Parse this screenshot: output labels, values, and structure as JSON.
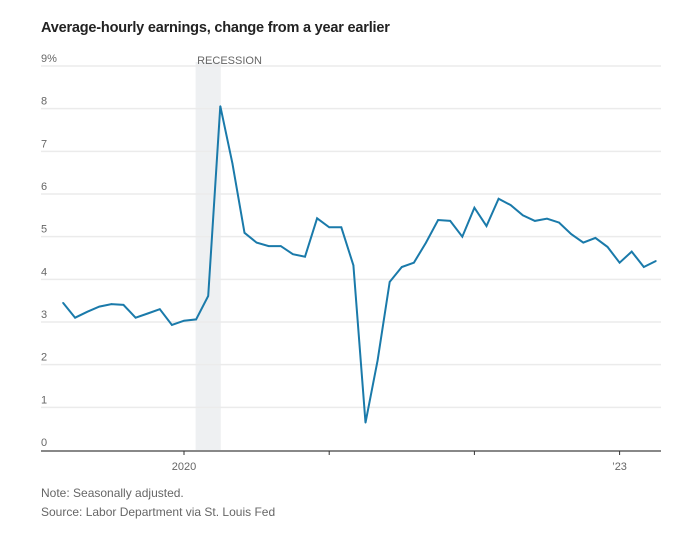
{
  "chart_data": {
    "type": "line",
    "title": "Average-hourly earnings, change from a year earlier",
    "xlabel": "",
    "ylabel": "",
    "ylim": [
      0,
      9
    ],
    "y_ticks": [
      {
        "value": 0,
        "label": "0"
      },
      {
        "value": 1,
        "label": "1"
      },
      {
        "value": 2,
        "label": "2"
      },
      {
        "value": 3,
        "label": "3"
      },
      {
        "value": 4,
        "label": "4"
      },
      {
        "value": 5,
        "label": "5"
      },
      {
        "value": 6,
        "label": "6"
      },
      {
        "value": 7,
        "label": "7"
      },
      {
        "value": 8,
        "label": "8"
      },
      {
        "value": 9,
        "label": "9%"
      }
    ],
    "x_ticks": [
      {
        "month_index": 10,
        "label": "2020"
      },
      {
        "month_index": 22,
        "label": ""
      },
      {
        "month_index": 34,
        "label": ""
      },
      {
        "month_index": 46,
        "label": "’23"
      }
    ],
    "x_start": "2019-03",
    "x_end": "2023-04",
    "grid": true,
    "annotation": {
      "label": "RECESSION",
      "start_index": 11,
      "end_index": 13
    },
    "series": [
      {
        "name": "Average-hourly earnings, y/y change (%)",
        "color": "#1a7aaa",
        "values": [
          3.45,
          3.1,
          3.24,
          3.36,
          3.42,
          3.4,
          3.1,
          3.2,
          3.3,
          2.93,
          3.03,
          3.06,
          3.61,
          8.06,
          6.72,
          5.09,
          4.86,
          4.78,
          4.78,
          4.59,
          4.53,
          5.43,
          5.22,
          5.22,
          4.33,
          0.64,
          2.1,
          3.94,
          4.29,
          4.39,
          4.86,
          5.39,
          5.37,
          5.0,
          5.68,
          5.25,
          5.89,
          5.74,
          5.5,
          5.37,
          5.42,
          5.33,
          5.06,
          4.86,
          4.97,
          4.76,
          4.39,
          4.65,
          4.29,
          4.43
        ]
      }
    ]
  },
  "notes": {
    "note": "Note: Seasonally adjusted.",
    "source": "Source: Labor Department via St. Louis Fed"
  }
}
